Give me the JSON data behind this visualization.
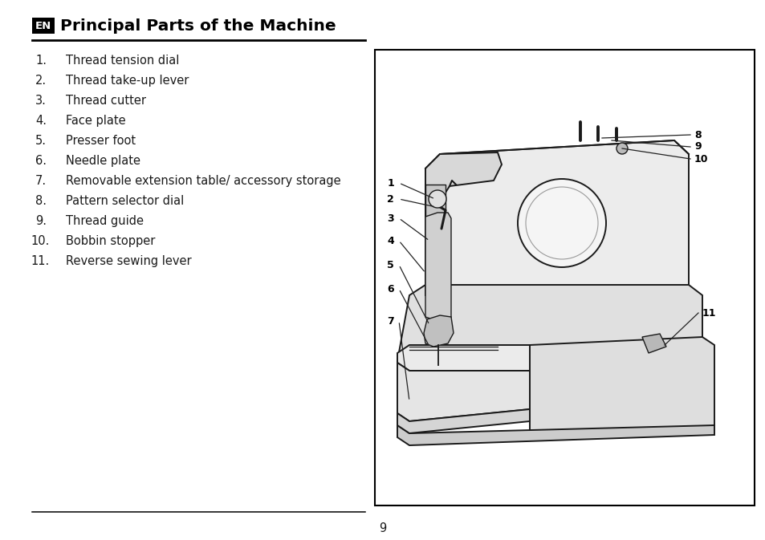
{
  "title": "Principal Parts of the Machine",
  "en_label": "EN",
  "items": [
    "Thread tension dial",
    "Thread take-up lever",
    "Thread cutter",
    "Face plate",
    "Presser foot",
    "Needle plate",
    "Removable extension table/ accessory storage",
    "Pattern selector dial",
    "Thread guide",
    "Bobbin stopper",
    "Reverse sewing lever"
  ],
  "page_number": "9",
  "bg_color": "#ffffff",
  "text_color": "#1a1a1a",
  "title_color": "#000000",
  "line_color": "#000000",
  "box_color": "#000000",
  "box_text_color": "#ffffff"
}
